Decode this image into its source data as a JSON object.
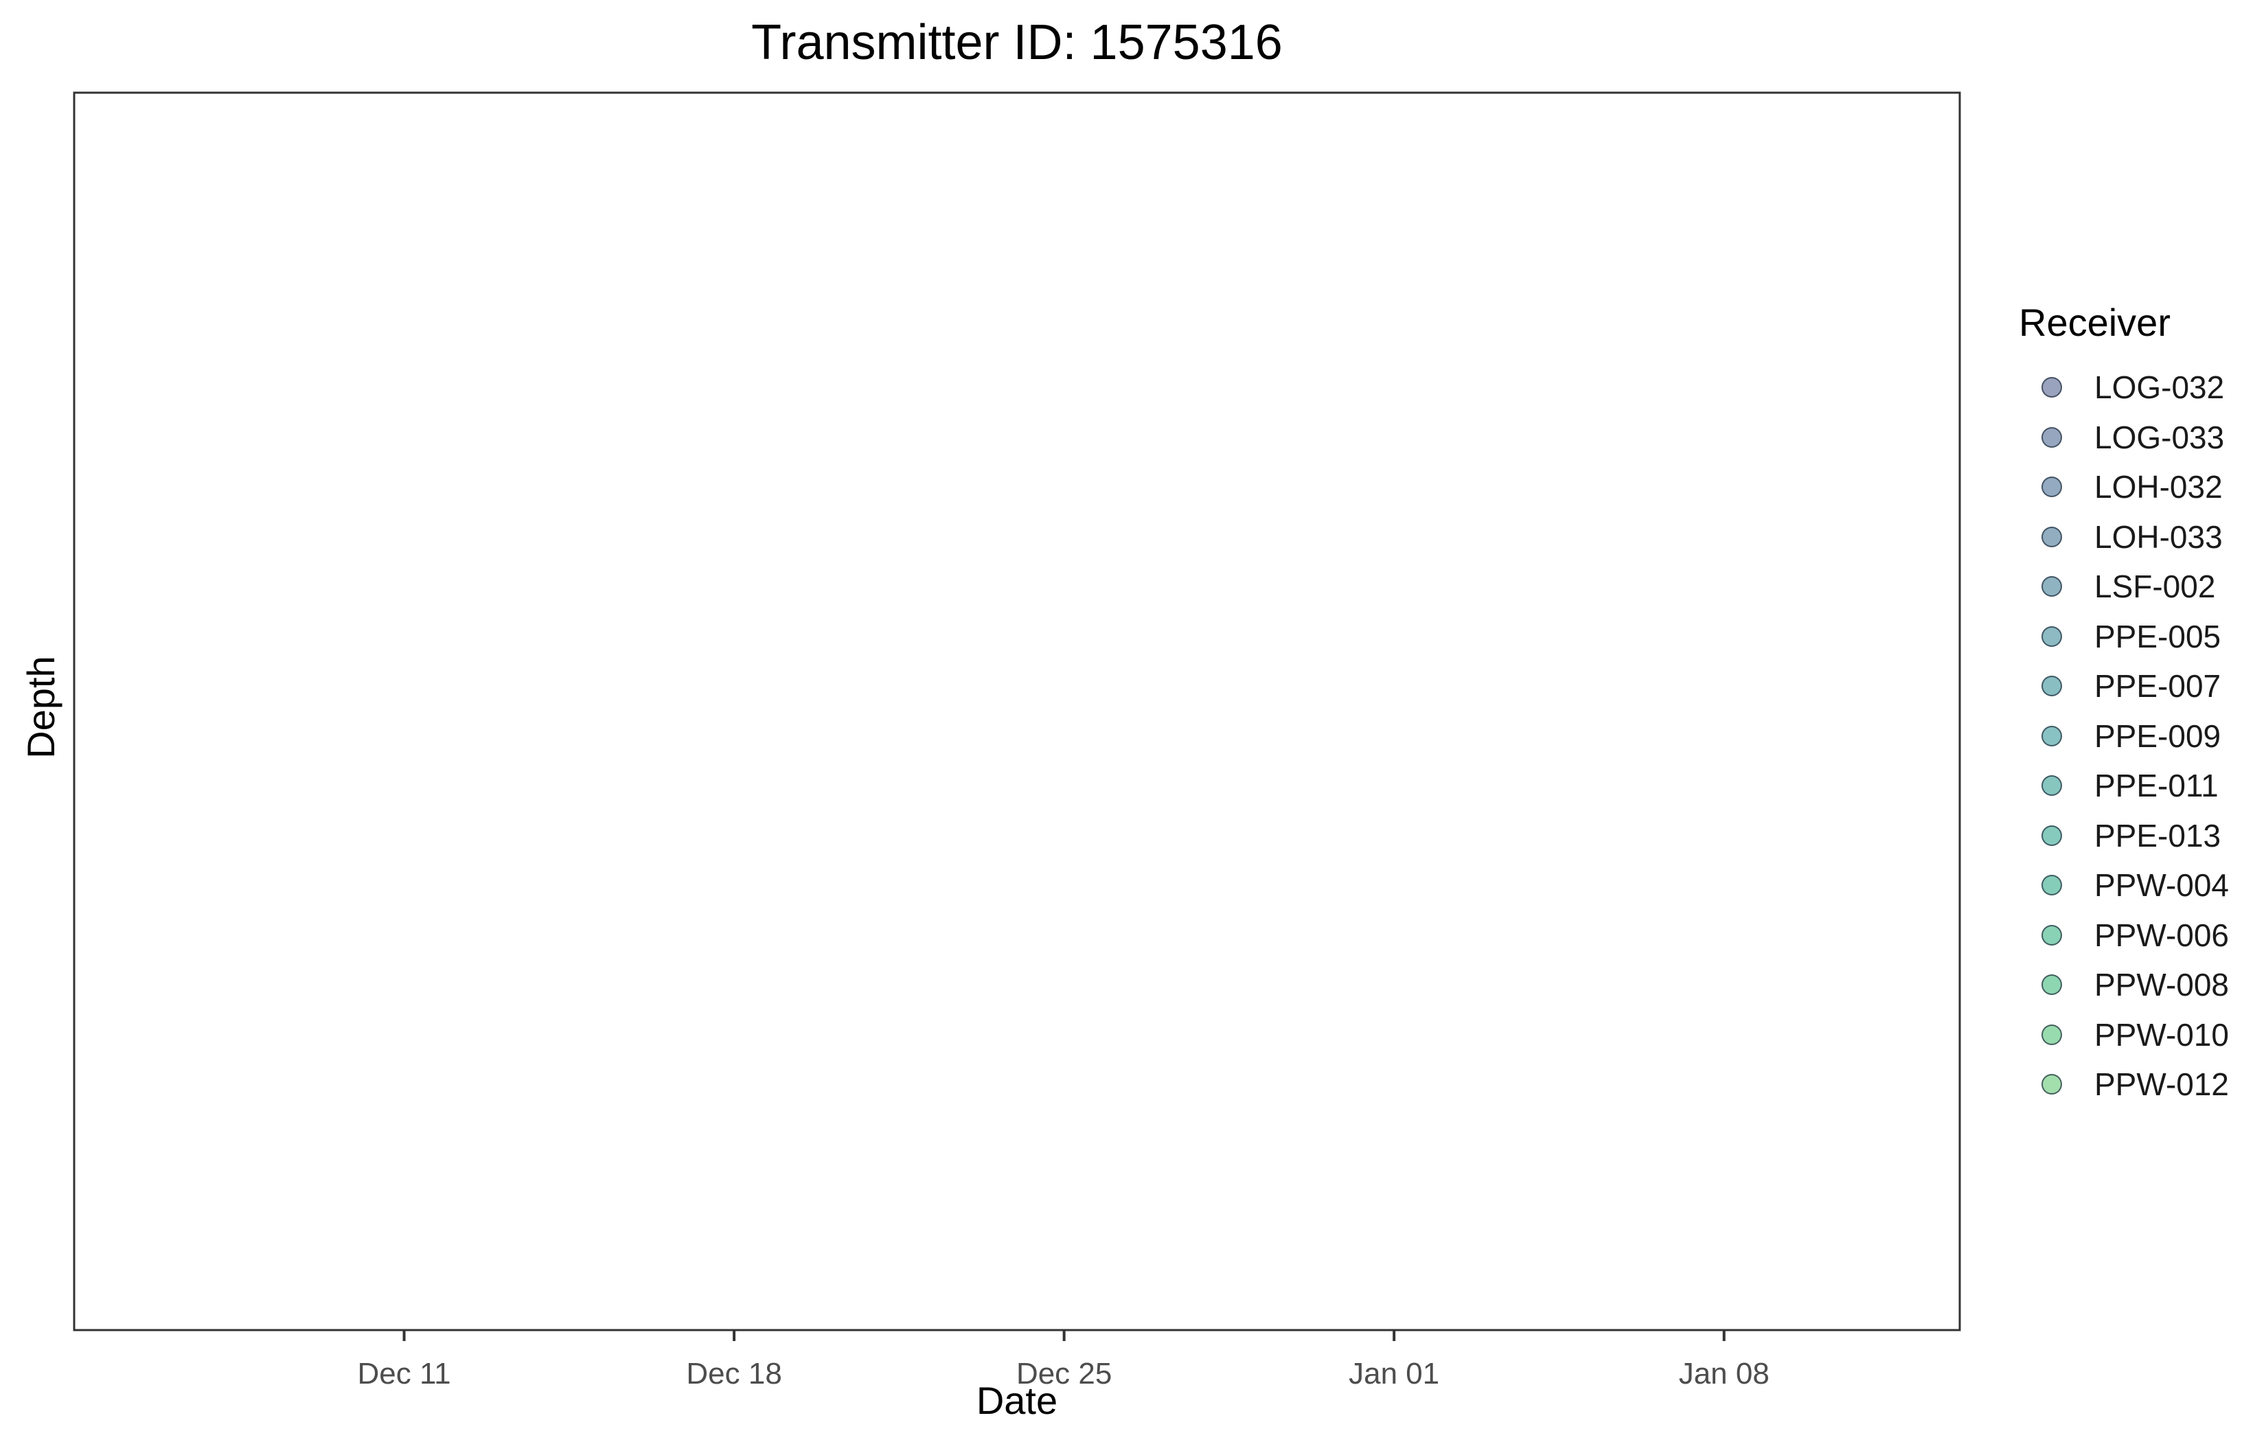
{
  "chart_data": {
    "type": "scatter",
    "title": "Transmitter ID: 1575316",
    "xlabel": "Date",
    "ylabel": "Depth",
    "x_scale": "date",
    "xlim": [
      "2016-12-04",
      "2017-01-13"
    ],
    "x_ticks": [
      {
        "value": "2016-12-11",
        "label": "Dec 11"
      },
      {
        "value": "2016-12-18",
        "label": "Dec 18"
      },
      {
        "value": "2016-12-25",
        "label": "Dec 25"
      },
      {
        "value": "2017-01-01",
        "label": "Jan 01"
      },
      {
        "value": "2017-01-08",
        "label": "Jan 08"
      }
    ],
    "y_ticks": [],
    "grid": false,
    "series": [],
    "legend": {
      "title": "Receiver",
      "position": "right",
      "entries": [
        {
          "label": "LOG-032",
          "color": "#9aa3bd"
        },
        {
          "label": "LOG-033",
          "color": "#97a6bf"
        },
        {
          "label": "LOH-032",
          "color": "#93aac0"
        },
        {
          "label": "LOH-033",
          "color": "#92adc0"
        },
        {
          "label": "LSF-002",
          "color": "#8fb3c1"
        },
        {
          "label": "PPE-005",
          "color": "#8dbac3"
        },
        {
          "label": "PPE-007",
          "color": "#89bec3"
        },
        {
          "label": "PPE-009",
          "color": "#89c2c2"
        },
        {
          "label": "PPE-011",
          "color": "#86c6bf"
        },
        {
          "label": "PPE-013",
          "color": "#85cabd"
        },
        {
          "label": "PPW-004",
          "color": "#85cdb9"
        },
        {
          "label": "PPW-006",
          "color": "#89d2b5"
        },
        {
          "label": "PPW-008",
          "color": "#8ed6b1"
        },
        {
          "label": "PPW-010",
          "color": "#98dbae"
        },
        {
          "label": "PPW-012",
          "color": "#a3dfac"
        }
      ]
    }
  }
}
